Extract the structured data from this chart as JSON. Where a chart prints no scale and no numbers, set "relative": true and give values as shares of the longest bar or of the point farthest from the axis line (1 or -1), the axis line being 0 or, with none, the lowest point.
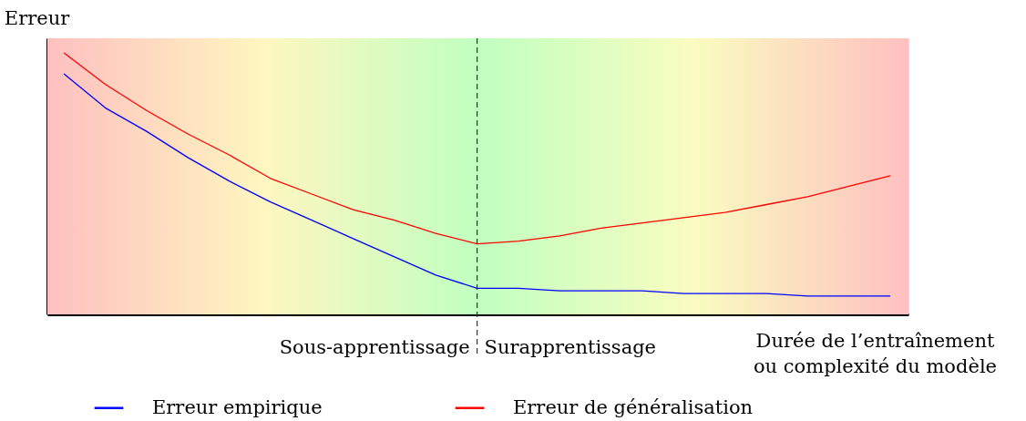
{
  "chart_data": {
    "type": "line",
    "relative": true,
    "ylabel": "Erreur",
    "xlabel": "Durée de l’entraînement\nou complexité du modèle",
    "categories": [
      null,
      null,
      null,
      null,
      null,
      null,
      null,
      null,
      null,
      null,
      null,
      null,
      null,
      null,
      null,
      null,
      null,
      null,
      null,
      null,
      null
    ],
    "series": [
      {
        "name": "Erreur empirique",
        "color": "#0000ff",
        "values": [
          0.92,
          0.79,
          0.7,
          0.6,
          0.51,
          0.43,
          0.36,
          0.29,
          0.22,
          0.15,
          0.1,
          0.1,
          0.09,
          0.09,
          0.09,
          0.08,
          0.08,
          0.08,
          0.07,
          0.07,
          0.07
        ]
      },
      {
        "name": "Erreur de généralisation",
        "color": "#ff0000",
        "values": [
          1.0,
          0.88,
          0.78,
          0.69,
          0.61,
          0.52,
          0.46,
          0.4,
          0.36,
          0.31,
          0.27,
          0.28,
          0.3,
          0.33,
          0.35,
          0.37,
          0.39,
          0.42,
          0.45,
          0.49,
          0.53
        ]
      }
    ],
    "ref_lines": [
      {
        "axis": "x",
        "value": null,
        "color": "#333333",
        "line_style": "dashed"
      }
    ],
    "annotations": [
      "Sous-apprentissage",
      "Surapprentissage"
    ],
    "legend": "bottom",
    "marker": "none",
    "line_style": "solid"
  }
}
